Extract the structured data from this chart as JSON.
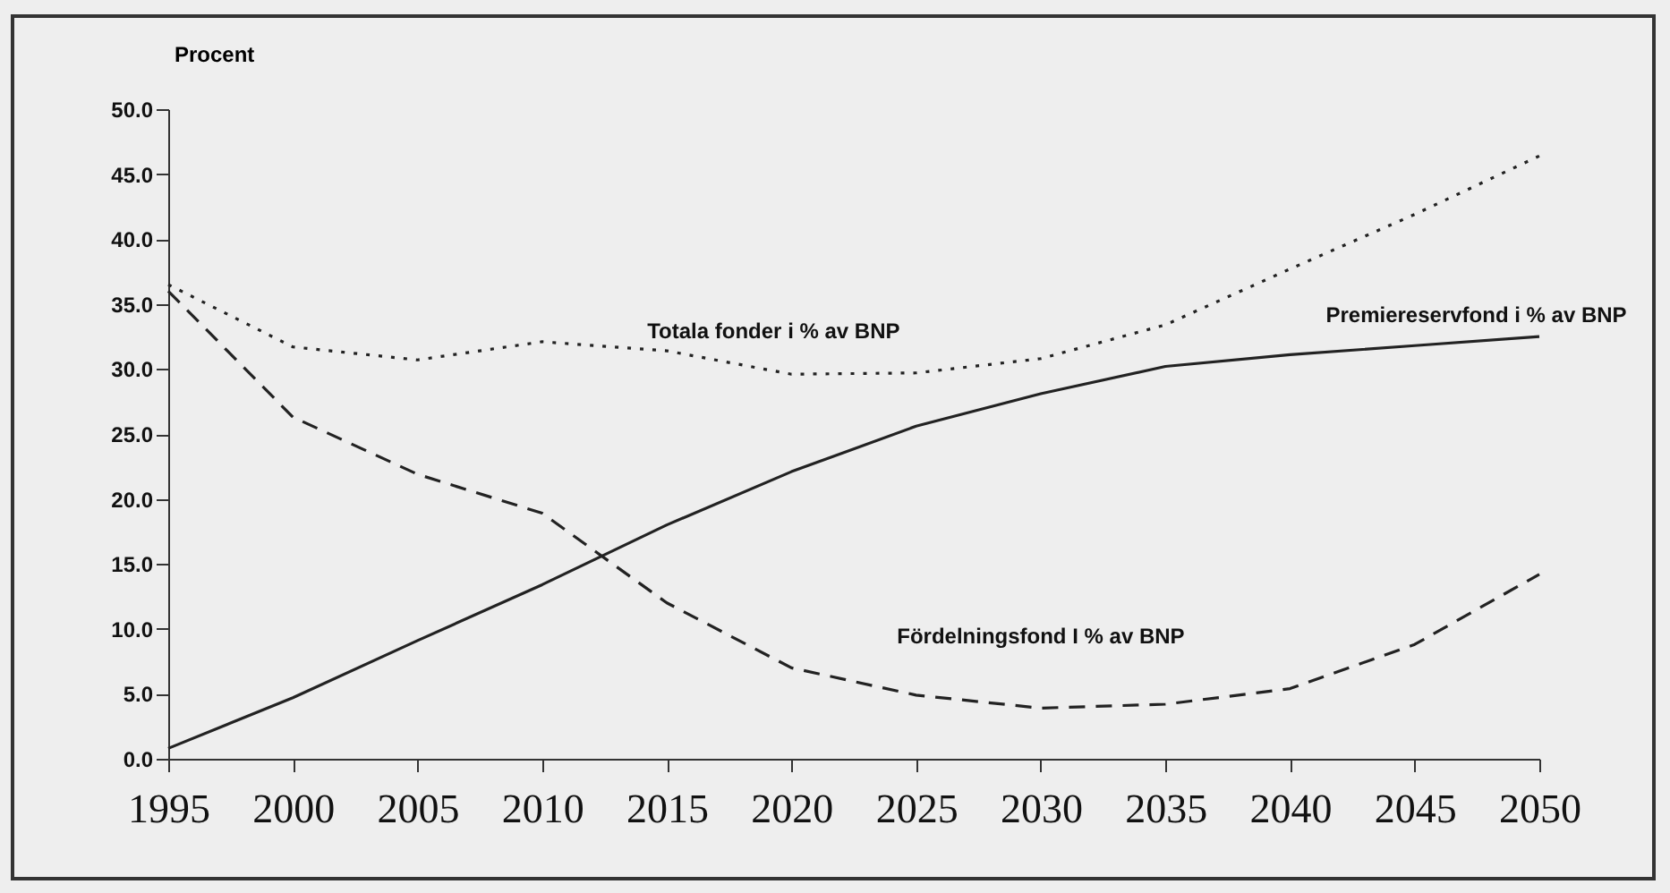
{
  "chart_data": {
    "type": "line",
    "ylabel": "Procent",
    "x": [
      1995,
      2000,
      2005,
      2010,
      2015,
      2020,
      2025,
      2030,
      2035,
      2040,
      2045,
      2050
    ],
    "series": [
      {
        "name": "Totala fonder i % av BNP",
        "color": "#222222",
        "line_style": "dotted",
        "values": [
          36.5,
          31.7,
          30.7,
          32.1,
          31.4,
          29.6,
          29.7,
          30.8,
          33.4,
          37.7,
          41.9,
          46.4
        ]
      },
      {
        "name": "Premiereservfond i % av BNP",
        "color": "#222222",
        "line_style": "solid",
        "values": [
          0.8,
          4.7,
          9.1,
          13.4,
          18.0,
          22.1,
          25.6,
          28.1,
          30.2,
          31.1,
          31.8,
          32.5
        ]
      },
      {
        "name": "Fördelningsfond  I % av BNP",
        "color": "#222222",
        "line_style": "dashed",
        "values": [
          36.0,
          26.3,
          21.9,
          18.9,
          12.0,
          7.0,
          4.9,
          3.9,
          4.2,
          5.4,
          8.8,
          14.2
        ]
      }
    ],
    "xlim": [
      1995,
      2050
    ],
    "xticks": [
      1995,
      2000,
      2005,
      2010,
      2015,
      2020,
      2025,
      2030,
      2035,
      2040,
      2045,
      2050
    ],
    "ylim": [
      0,
      50
    ],
    "yticks": [
      {
        "value": 0,
        "label": "0.0"
      },
      {
        "value": 5,
        "label": "5.0"
      },
      {
        "value": 10,
        "label": "10.0"
      },
      {
        "value": 15,
        "label": "15.0"
      },
      {
        "value": 20,
        "label": "20.0"
      },
      {
        "value": 25,
        "label": "25.0"
      },
      {
        "value": 30,
        "label": "30.0"
      },
      {
        "value": 35,
        "label": "35.0"
      },
      {
        "value": 40,
        "label": "40.0"
      },
      {
        "value": 45,
        "label": "45.0"
      },
      {
        "value": 50,
        "label": "50.0"
      }
    ],
    "grid": false,
    "legend": false,
    "marker": "none"
  }
}
